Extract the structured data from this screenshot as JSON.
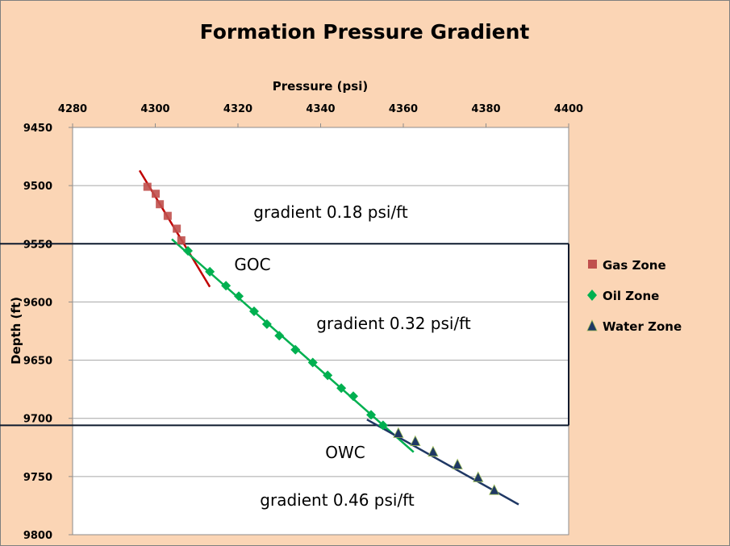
{
  "chart_data": {
    "type": "scatter",
    "title": "Formation Pressure Gradient",
    "xlabel": "Pressure  (psi)",
    "ylabel": "Depth  (ft)",
    "xlim": [
      4280,
      4400
    ],
    "ylim": [
      9800,
      9450
    ],
    "x_axis_position": "top",
    "y_inverted": true,
    "grid": "horizontal",
    "xticks": [
      "4280",
      "4300",
      "4320",
      "4340",
      "4360",
      "4380",
      "4400"
    ],
    "yticks": [
      "9450",
      "9500",
      "9550",
      "9600",
      "9650",
      "9700",
      "9750",
      "9800"
    ],
    "legend_position": "right",
    "series": [
      {
        "name": "Gas Zone",
        "marker": "square",
        "color": "#c0504d",
        "points": [
          [
            4298.1,
            9501
          ],
          [
            4300.1,
            9507
          ],
          [
            4301.1,
            9516
          ],
          [
            4303.0,
            9526
          ],
          [
            4305.2,
            9537
          ],
          [
            4306.3,
            9547
          ]
        ],
        "trendline": [
          [
            4296.2,
            9487
          ],
          [
            4313.2,
            9587
          ]
        ],
        "trend_color": "#c00000"
      },
      {
        "name": "Oil Zone",
        "marker": "diamond",
        "color": "#00b050",
        "points": [
          [
            4307.9,
            9556
          ],
          [
            4313.2,
            9574
          ],
          [
            4317.1,
            9586
          ],
          [
            4320.2,
            9595
          ],
          [
            4323.9,
            9608
          ],
          [
            4327.0,
            9619
          ],
          [
            4330.0,
            9629
          ],
          [
            4333.9,
            9641
          ],
          [
            4338.1,
            9652
          ],
          [
            4341.7,
            9663
          ],
          [
            4345.0,
            9674
          ],
          [
            4347.9,
            9681
          ],
          [
            4352.2,
            9697
          ],
          [
            4355.1,
            9706
          ]
        ],
        "trendline": [
          [
            4304.0,
            9546
          ],
          [
            4362.5,
            9729
          ]
        ],
        "trend_color": "#00b050"
      },
      {
        "name": "Water Zone",
        "marker": "triangle",
        "color": "#1f3864",
        "points": [
          [
            4358.8,
            9713
          ],
          [
            4362.9,
            9720
          ],
          [
            4367.2,
            9729
          ],
          [
            4373.1,
            9740
          ],
          [
            4378.1,
            9751
          ],
          [
            4382.0,
            9762
          ]
        ],
        "trendline": [
          [
            4351.2,
            9701
          ],
          [
            4387.9,
            9774
          ]
        ],
        "trend_color": "#1f3864"
      }
    ],
    "contacts": [
      {
        "label": "GOC",
        "depth": 9550
      },
      {
        "label": "OWC",
        "depth": 9706
      }
    ],
    "annotations": [
      "gradient 0.18 psi/ft",
      "GOC",
      "gradient 0.32 psi/ft",
      "OWC",
      "gradient 0.46 psi/ft"
    ]
  }
}
